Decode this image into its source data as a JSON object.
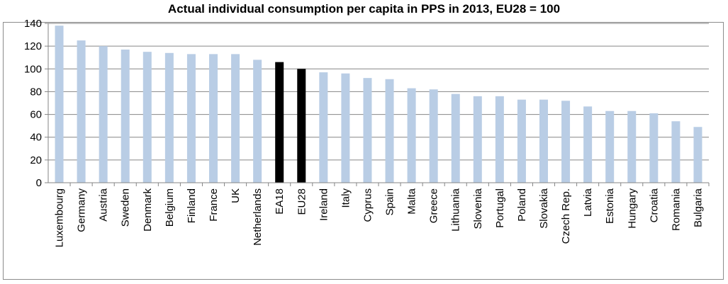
{
  "chart_data": {
    "type": "bar",
    "title": "Actual individual consumption per capita in PPS in 2013, EU28 = 100",
    "xlabel": "",
    "ylabel": "",
    "ylim": [
      0,
      140
    ],
    "yticks": [
      0,
      20,
      40,
      60,
      80,
      100,
      120,
      140
    ],
    "grid": true,
    "legend": "none",
    "categories": [
      "Luxembourg",
      "Germany",
      "Austria",
      "Sweden",
      "Denmark",
      "Belgium",
      "Finland",
      "France",
      "UK",
      "Netherlands",
      "EA18",
      "EU28",
      "Ireland",
      "Italy",
      "Cyprus",
      "Spain",
      "Malta",
      "Greece",
      "Lithuania",
      "Slovenia",
      "Portugal",
      "Poland",
      "Slovakia",
      "Czech Rep.",
      "Latvia",
      "Estonia",
      "Hungary",
      "Croatia",
      "Romania",
      "Bulgaria"
    ],
    "values": [
      138,
      125,
      120,
      117,
      115,
      114,
      113,
      113,
      113,
      108,
      106,
      100,
      97,
      96,
      92,
      91,
      83,
      82,
      78,
      76,
      76,
      73,
      73,
      72,
      67,
      63,
      63,
      61,
      54,
      49
    ],
    "highlighted": [
      "EA18",
      "EU28"
    ],
    "colors": {
      "bar": "#b9cde5",
      "highlight": "#000000",
      "grid": "#868686",
      "axis": "#868686"
    }
  }
}
